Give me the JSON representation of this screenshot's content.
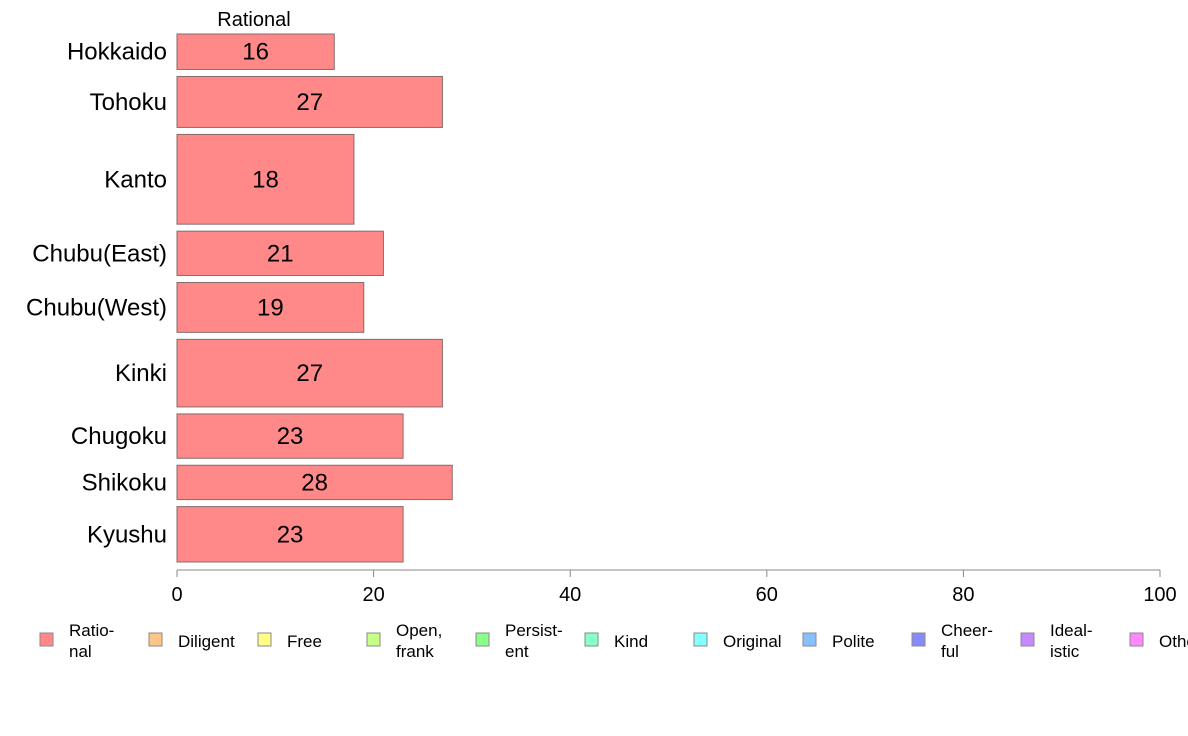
{
  "chart_data": {
    "type": "bar",
    "orientation": "horizontal",
    "stacked": true,
    "series_title": "Rational",
    "categories": [
      "Hokkaido",
      "Tohoku",
      "Kanto",
      "Chubu(East)",
      "Chubu(West)",
      "Kinki",
      "Chugoku",
      "Shikoku",
      "Kyushu"
    ],
    "series": [
      {
        "key": "rational",
        "values": [
          16,
          27,
          18,
          21,
          19,
          27,
          23,
          28,
          23
        ],
        "color": "#ff8888"
      }
    ],
    "bar_labels": [
      "16",
      "27",
      "18",
      "21",
      "19",
      "27",
      "23",
      "28",
      "23"
    ],
    "category_weights": [
      0.64,
      0.92,
      1.62,
      0.8,
      0.9,
      1.22,
      0.8,
      0.62,
      1.0
    ],
    "xlim": [
      0,
      100
    ],
    "xticks": [
      0,
      20,
      40,
      60,
      80,
      100
    ],
    "grid": false,
    "legend_position": "bottom",
    "legend": [
      {
        "lines": [
          "Ratio-",
          "nal"
        ],
        "color": "#ff8888"
      },
      {
        "lines": [
          "Diligent"
        ],
        "color": "#ffc488"
      },
      {
        "lines": [
          "Free"
        ],
        "color": "#ffff88"
      },
      {
        "lines": [
          "Open,",
          "frank"
        ],
        "color": "#c8ff88"
      },
      {
        "lines": [
          "Persist-",
          "ent"
        ],
        "color": "#88ff88"
      },
      {
        "lines": [
          "Kind"
        ],
        "color": "#88ffc8"
      },
      {
        "lines": [
          "Original"
        ],
        "color": "#88ffff"
      },
      {
        "lines": [
          "Polite"
        ],
        "color": "#88c0ff"
      },
      {
        "lines": [
          "Cheer-",
          "ful"
        ],
        "color": "#8888ff"
      },
      {
        "lines": [
          "Ideal-",
          "istic"
        ],
        "color": "#c488ff"
      },
      {
        "lines": [
          "Other"
        ],
        "color": "#ff88ff"
      }
    ]
  }
}
